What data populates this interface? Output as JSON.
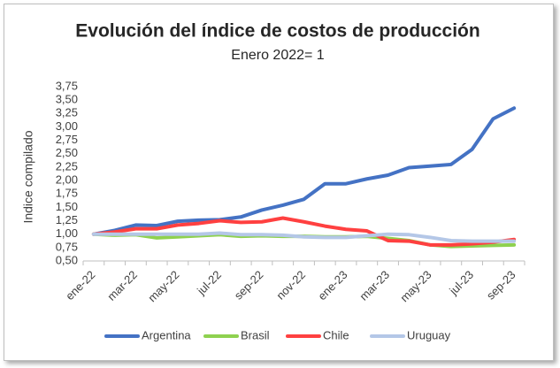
{
  "chart_data": {
    "type": "line",
    "title": "Evolución del índice de costos de producción",
    "subtitle": "Enero 2022= 1",
    "y_label": "Indice compilado",
    "categories": [
      "ene-22",
      null,
      "mar-22",
      null,
      "may-22",
      null,
      "jul-22",
      null,
      "sep-22",
      null,
      "nov-22",
      null,
      "ene-23",
      null,
      "mar-23",
      null,
      "may-23",
      null,
      "jul-23",
      null,
      "sep-23"
    ],
    "series": [
      {
        "name": "Argentina",
        "color": "#4472c4",
        "values": [
          1.0,
          1.07,
          1.17,
          1.16,
          1.24,
          1.26,
          1.27,
          1.32,
          1.45,
          1.54,
          1.65,
          1.94,
          1.94,
          2.03,
          2.1,
          2.24,
          2.27,
          2.3,
          2.58,
          3.15,
          3.35
        ]
      },
      {
        "name": "Brasil",
        "color": "#8ed14f",
        "values": [
          1.0,
          0.98,
          0.99,
          0.93,
          0.95,
          0.97,
          0.99,
          0.96,
          0.97,
          0.96,
          0.96,
          0.95,
          0.95,
          0.96,
          0.92,
          0.88,
          0.8,
          0.77,
          0.78,
          0.79,
          0.8
        ]
      },
      {
        "name": "Chile",
        "color": "#ff4040",
        "values": [
          1.0,
          1.04,
          1.1,
          1.1,
          1.17,
          1.2,
          1.25,
          1.22,
          1.23,
          1.3,
          1.23,
          1.15,
          1.09,
          1.06,
          0.88,
          0.87,
          0.8,
          0.8,
          0.82,
          0.85,
          0.9
        ]
      },
      {
        "name": "Uruguay",
        "color": "#b4c7e7",
        "values": [
          1.0,
          1.0,
          1.0,
          1.0,
          1.0,
          1.0,
          1.02,
          0.99,
          0.99,
          0.98,
          0.95,
          0.94,
          0.94,
          0.97,
          1.0,
          0.99,
          0.94,
          0.88,
          0.87,
          0.87,
          0.87
        ]
      }
    ],
    "ylim": [
      0.5,
      3.75
    ],
    "yticks": [
      {
        "value": 0.5,
        "label": "0,50"
      },
      {
        "value": 0.75,
        "label": "0,75"
      },
      {
        "value": 1,
        "label": "1,00"
      },
      {
        "value": 1.25,
        "label": "1,25"
      },
      {
        "value": 1.5,
        "label": "1,50"
      },
      {
        "value": 1.75,
        "label": "1,75"
      },
      {
        "value": 2,
        "label": "2,00"
      },
      {
        "value": 2.25,
        "label": "2,25"
      },
      {
        "value": 2.5,
        "label": "2,50"
      },
      {
        "value": 2.75,
        "label": "2,75"
      },
      {
        "value": 3,
        "label": "3,00"
      },
      {
        "value": 3.25,
        "label": "3,25"
      },
      {
        "value": 3.5,
        "label": "3,50"
      },
      {
        "value": 3.75,
        "label": "3,75"
      }
    ],
    "grid": false,
    "legend": "bottom"
  }
}
